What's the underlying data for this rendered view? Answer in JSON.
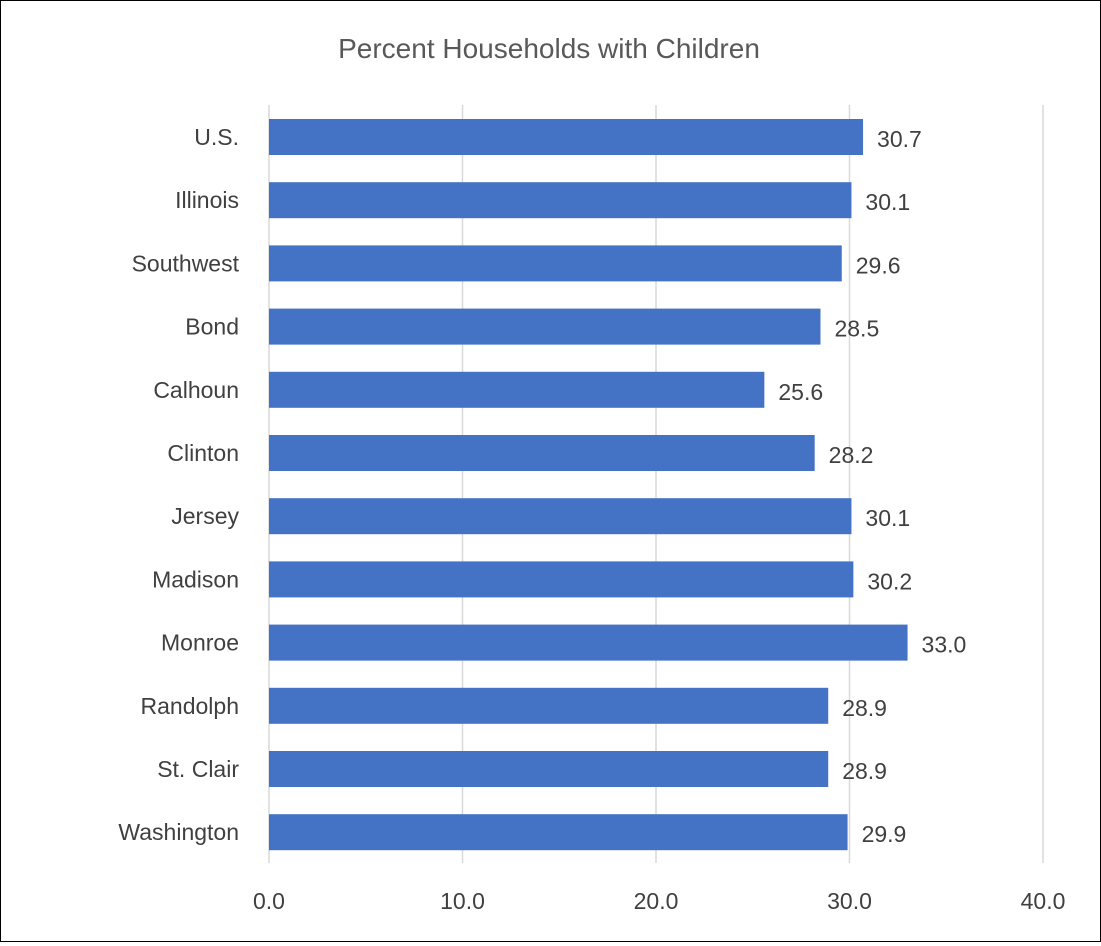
{
  "chart_data": {
    "type": "bar",
    "orientation": "horizontal",
    "title": "Percent Households with Children",
    "xlabel": "",
    "ylabel": "",
    "categories": [
      "U.S.",
      "Illinois",
      "Southwest",
      "Bond",
      "Calhoun",
      "Clinton",
      "Jersey",
      "Madison",
      "Monroe",
      "Randolph",
      "St. Clair",
      "Washington"
    ],
    "values": [
      30.7,
      30.1,
      29.6,
      28.5,
      25.6,
      28.2,
      30.1,
      30.2,
      33.0,
      28.9,
      28.9,
      29.9
    ],
    "value_labels": [
      "30.7",
      "30.1",
      "29.6",
      "28.5",
      "25.6",
      "28.2",
      "30.1",
      "30.2",
      "33.0",
      "28.9",
      "28.9",
      "29.9"
    ],
    "ticks": [
      "0.0",
      "10.0",
      "20.0",
      "30.0",
      "40.0"
    ],
    "xlim": [
      0,
      40
    ],
    "grid": true,
    "legend": "none",
    "bar_color": "#4472c4"
  }
}
